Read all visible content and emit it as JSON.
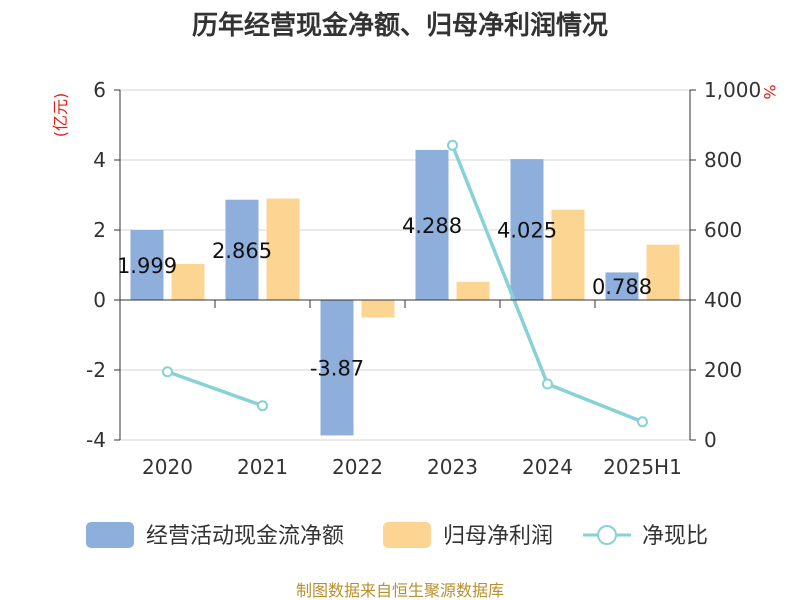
{
  "chart_data": {
    "type": "bar",
    "title": "历年经营现金净额、归母净利润情况",
    "source": "制图数据来自恒生聚源数据库",
    "left_axis_unit": "(亿元)",
    "right_axis_unit": "%",
    "categories": [
      "2020",
      "2021",
      "2022",
      "2023",
      "2024",
      "2025H1"
    ],
    "left_ylim": [
      -4,
      6
    ],
    "left_ticks": [
      -4,
      -2,
      0,
      2,
      4,
      6
    ],
    "left_tick_labels": [
      "-4",
      "-2",
      "0",
      "2",
      "4",
      "6"
    ],
    "right_ylim": [
      0,
      1000
    ],
    "right_ticks": [
      0,
      200,
      400,
      600,
      800,
      1000
    ],
    "right_tick_labels": [
      "0",
      "200",
      "400",
      "600",
      "800",
      "1,000"
    ],
    "grid": true,
    "legend_position": "bottom",
    "series": [
      {
        "name": "经营活动现金流净额",
        "type": "bar",
        "axis": "left",
        "color": "#8eaedb",
        "values": [
          1.999,
          2.865,
          -3.87,
          4.288,
          4.025,
          0.788
        ],
        "labels": [
          "1.999",
          "2.865",
          "-3.87",
          "4.288",
          "4.025",
          "0.788"
        ]
      },
      {
        "name": "归母净利润",
        "type": "bar",
        "axis": "left",
        "color": "#fdd593",
        "values": [
          1.03,
          2.9,
          -0.5,
          0.52,
          2.58,
          1.58
        ]
      },
      {
        "name": "净现比",
        "type": "line",
        "axis": "right",
        "color": "#88d2d6",
        "values": [
          195,
          98,
          null,
          842,
          160,
          52
        ]
      }
    ]
  }
}
